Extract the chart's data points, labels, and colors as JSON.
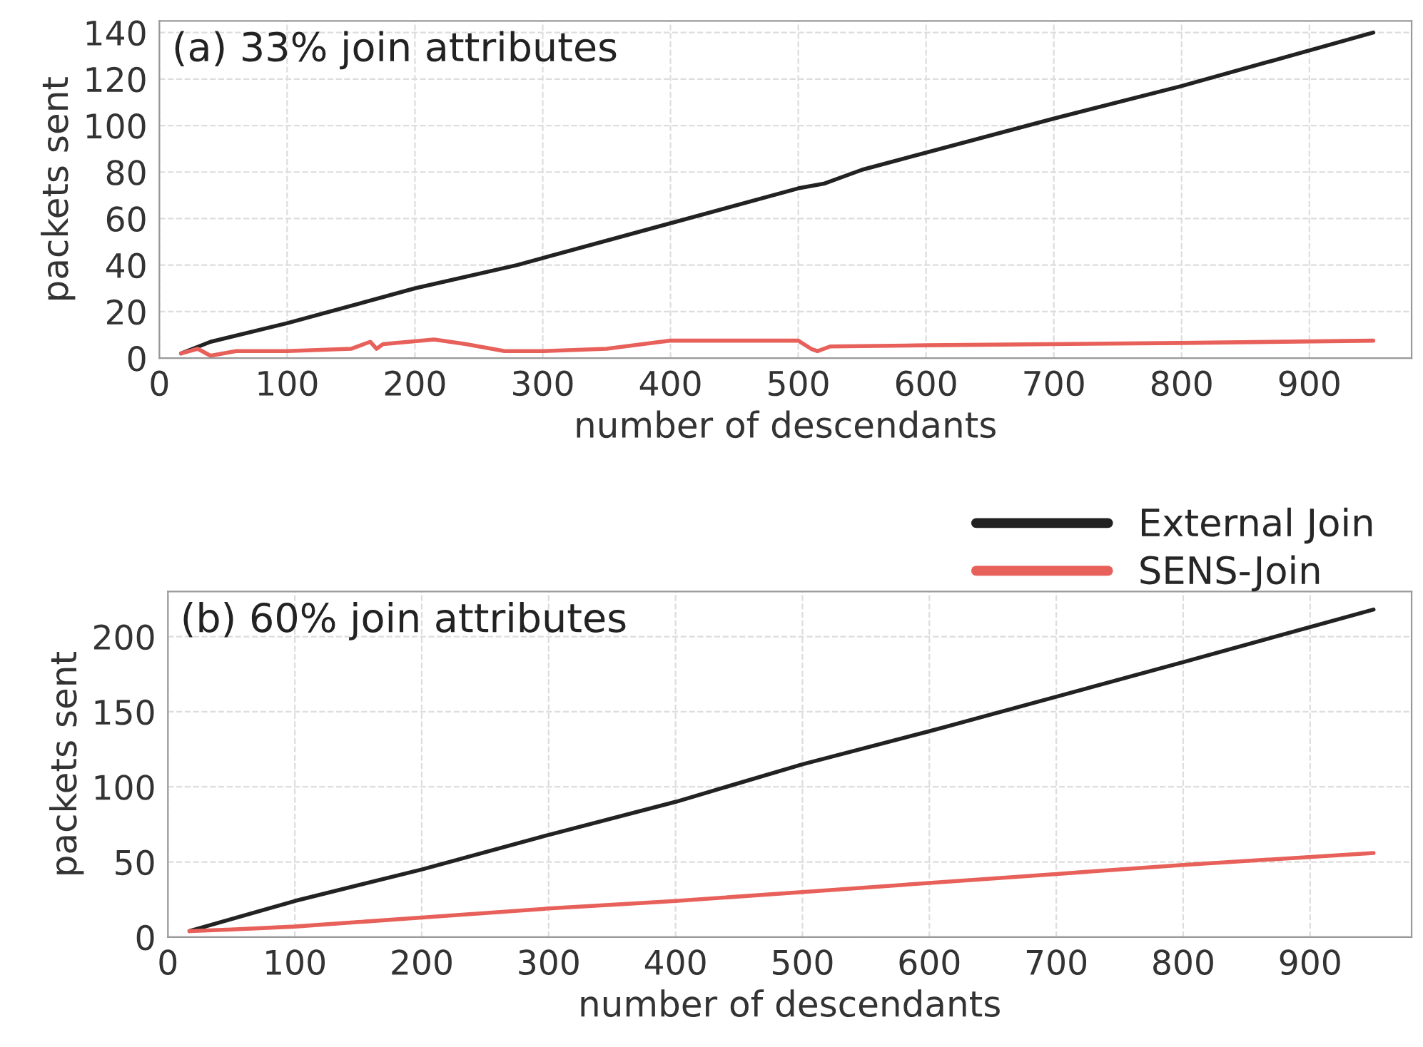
{
  "chart_data": [
    {
      "type": "line",
      "title": "(a) 33% join attributes",
      "xlabel": "number of descendants",
      "ylabel": "packets sent",
      "xlim": [
        0,
        980
      ],
      "ylim": [
        0,
        145
      ],
      "xticks": [
        0,
        100,
        200,
        300,
        400,
        500,
        600,
        700,
        800,
        900
      ],
      "yticks": [
        0,
        20,
        40,
        60,
        80,
        100,
        120,
        140
      ],
      "grid": true,
      "legend": "bottom right",
      "series": [
        {
          "name": "External Join",
          "color": "#222222",
          "x": [
            17,
            40,
            100,
            200,
            280,
            400,
            500,
            520,
            550,
            700,
            800,
            950
          ],
          "values": [
            2,
            7,
            15,
            30,
            40,
            58,
            73,
            75,
            81,
            103,
            117,
            140
          ]
        },
        {
          "name": "SENS-Join",
          "color": "#e8605a",
          "x": [
            17,
            30,
            40,
            60,
            100,
            150,
            165,
            170,
            175,
            215,
            240,
            270,
            300,
            350,
            400,
            500,
            510,
            515,
            525,
            600,
            800,
            950
          ],
          "values": [
            2,
            4,
            1,
            3,
            3,
            4,
            7,
            4,
            6,
            8,
            6,
            3,
            3,
            4,
            7.5,
            7.5,
            4,
            3,
            5,
            5.5,
            6.5,
            7.5
          ]
        }
      ]
    },
    {
      "type": "line",
      "title": "(b) 60% join attributes",
      "xlabel": "number of descendants",
      "ylabel": "packets sent",
      "xlim": [
        0,
        980
      ],
      "ylim": [
        0,
        230
      ],
      "xticks": [
        0,
        100,
        200,
        300,
        400,
        500,
        600,
        700,
        800,
        900
      ],
      "yticks": [
        0,
        50,
        100,
        150,
        200
      ],
      "grid": true,
      "series": [
        {
          "color": "#222222",
          "x": [
            17,
            100,
            200,
            300,
            400,
            500,
            600,
            700,
            800,
            950
          ],
          "values": [
            4,
            24,
            45,
            68,
            90,
            115,
            137,
            160,
            183,
            218
          ]
        },
        {
          "color": "#e8605a",
          "x": [
            17,
            50,
            100,
            150,
            200,
            300,
            400,
            500,
            600,
            700,
            800,
            950
          ],
          "values": [
            4,
            5,
            7,
            10,
            13,
            19,
            24,
            30,
            36,
            42,
            48,
            56
          ]
        }
      ]
    }
  ]
}
